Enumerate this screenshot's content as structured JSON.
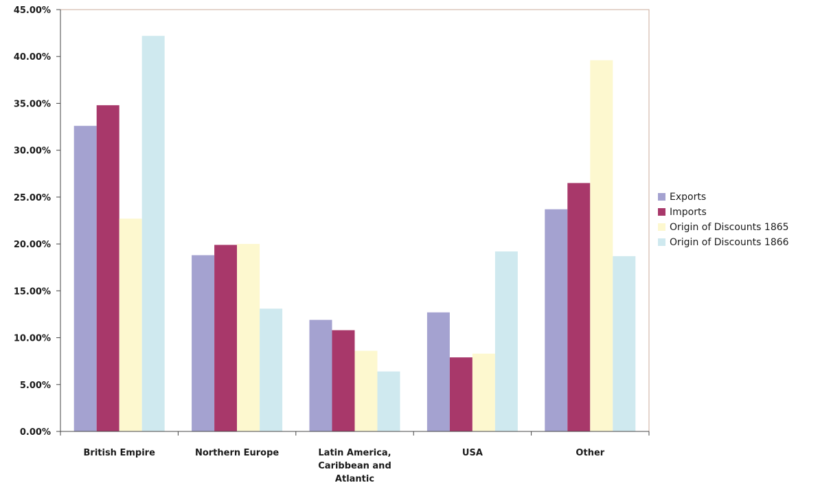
{
  "chart_data": {
    "type": "bar",
    "categories": [
      [
        "British Empire"
      ],
      [
        "Northern Europe"
      ],
      [
        "Latin America,",
        "Caribbean and",
        "Atlantic"
      ],
      [
        "USA"
      ],
      [
        "Other"
      ]
    ],
    "series": [
      {
        "name": "Exports",
        "color": "#a4a2d0",
        "values": [
          32.6,
          18.8,
          11.9,
          12.7,
          23.7
        ]
      },
      {
        "name": "Imports",
        "color": "#a8386a",
        "values": [
          34.8,
          19.9,
          10.8,
          7.9,
          26.5
        ]
      },
      {
        "name": "Origin of Discounts 1865",
        "color": "#fdf8cf",
        "values": [
          22.7,
          20.0,
          8.6,
          8.3,
          39.6
        ]
      },
      {
        "name": "Origin of Discounts 1866",
        "color": "#cfe9ef",
        "values": [
          42.2,
          13.1,
          6.4,
          19.2,
          18.7
        ]
      }
    ],
    "ylim": [
      0,
      45
    ],
    "yticks": [
      0,
      5,
      10,
      15,
      20,
      25,
      30,
      35,
      40,
      45
    ],
    "ytick_labels": [
      "0.00%",
      "5.00%",
      "10.00%",
      "15.00%",
      "20.00%",
      "25.00%",
      "30.00%",
      "35.00%",
      "40.00%",
      "45.00%"
    ],
    "legend_position": "right",
    "grid": false,
    "plot_border_color": "#c9a99a"
  }
}
